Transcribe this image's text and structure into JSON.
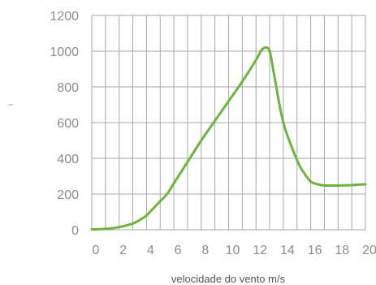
{
  "chart_data": {
    "type": "line",
    "title": "",
    "xlabel": "velocidade do vento m/s",
    "ylabel": "i",
    "xlim": [
      0,
      20
    ],
    "ylim": [
      0,
      1200
    ],
    "x_ticks": [
      "0",
      "2",
      "4",
      "6",
      "8",
      "10",
      "12",
      "14",
      "16",
      "18",
      "20"
    ],
    "y_ticks": [
      "0",
      "200",
      "400",
      "600",
      "800",
      "1000",
      "1200"
    ],
    "grid": true,
    "legend": "none",
    "colors": {
      "line": "#6db33f",
      "grid": "#a6a6a6",
      "tick_text": "#8c8c8c",
      "axis_title": "#555555"
    },
    "series": [
      {
        "x": [
          0,
          1,
          2,
          3,
          3.5,
          4,
          4.5,
          5,
          5.5,
          6,
          7,
          8,
          9,
          10,
          11,
          12,
          12.4,
          12.7,
          13,
          13.3,
          14,
          15,
          15.5,
          16,
          16.5,
          17,
          18,
          19,
          20
        ],
        "values": [
          2,
          5,
          15,
          35,
          55,
          80,
          120,
          160,
          200,
          260,
          380,
          500,
          610,
          720,
          830,
          950,
          1005,
          1020,
          1000,
          880,
          600,
          390,
          320,
          270,
          255,
          248,
          248,
          250,
          255
        ]
      }
    ]
  }
}
